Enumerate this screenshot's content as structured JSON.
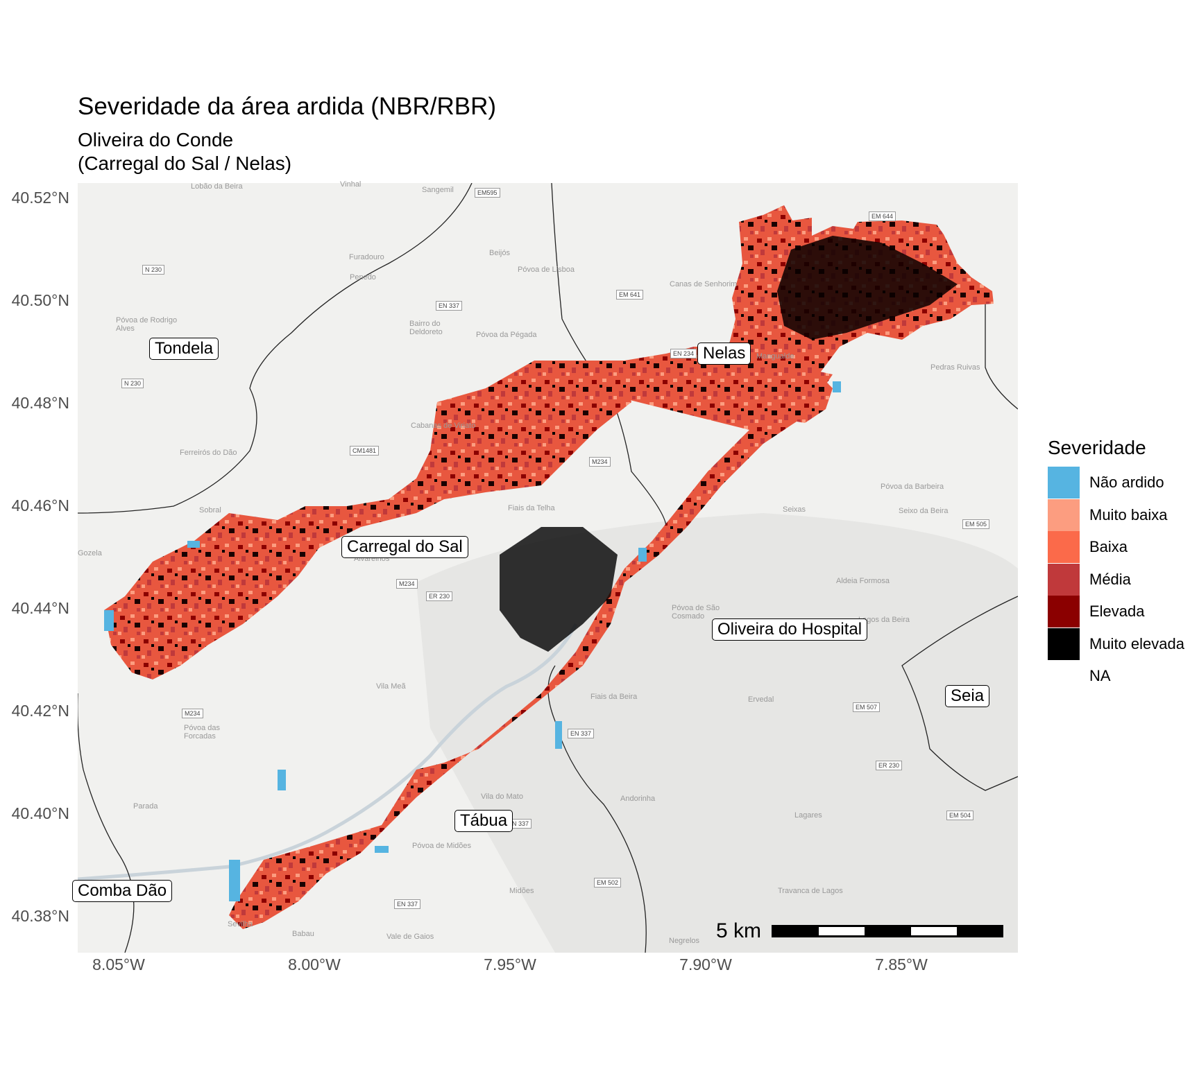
{
  "title": "Severidade da área ardida (NBR/RBR)",
  "subtitle": "Oliveira do Conde\n(Carregal do Sal / Nelas)",
  "axes": {
    "y_ticks": [
      "40.52°N",
      "40.50°N",
      "40.48°N",
      "40.46°N",
      "40.44°N",
      "40.42°N",
      "40.40°N",
      "40.38°N"
    ],
    "x_ticks": [
      "8.05°W",
      "8.00°W",
      "7.95°W",
      "7.90°W",
      "7.85°W"
    ]
  },
  "places": [
    "Tondela",
    "Nelas",
    "Carregal do Sal",
    "Oliveira do Hospital",
    "Seia",
    "Tábua",
    "Comba Dão"
  ],
  "minor_places": [
    "Lobão da Beira",
    "Vinhal",
    "Sangemil",
    "Furadouro",
    "Beijós",
    "Penedo",
    "Póvoa de Lisboa",
    "Canas de Senhorim",
    "Póvoa de Rodrigo Alves",
    "Bairro do Deldoreto",
    "Póvoa da Pégada",
    "Cabanas de Viriato",
    "Ferreirós do Dão",
    "Sobral",
    "Fiais da Telha",
    "Póvoa da Barbeira",
    "Seixas",
    "Seixo da Beira",
    "Aldeia Formosa",
    "Póvoa de São Cosmado",
    "Lagos da Beira",
    "Pedras Ruivas",
    "Alvarelhos",
    "Vila Meã",
    "Fiais da Beira",
    "Ervedal",
    "Póvoa das Forcadas",
    "Parada",
    "Vila do Mato",
    "Andorinha",
    "Lagares",
    "Póvoa de Midões",
    "Midões",
    "Travanca de Lagos",
    "Sevilha",
    "Babau",
    "Vale de Gaios",
    "Negrelos",
    "Mangualde",
    "Gozela"
  ],
  "roads": [
    "EM595",
    "N 230",
    "EN 337",
    "EM 641",
    "EN 234",
    "EM 644",
    "N 230",
    "CM1481",
    "M234",
    "EM 505",
    "M234",
    "ER 230",
    "M234",
    "EN 337",
    "EM 507",
    "ER 230",
    "EM 504",
    "EN 337",
    "EM 502",
    "EN 337"
  ],
  "legend": {
    "title": "Severidade",
    "items": [
      {
        "label": "Não ardido",
        "color": "#56b4e1"
      },
      {
        "label": "Muito baixa",
        "color": "#fc9d80"
      },
      {
        "label": "Baixa",
        "color": "#fb6a4a"
      },
      {
        "label": "Média",
        "color": "#c0393b"
      },
      {
        "label": "Elevada",
        "color": "#8b0000"
      },
      {
        "label": "Muito elevada",
        "color": "#000000"
      },
      {
        "label": "NA",
        "color": "none"
      }
    ]
  },
  "scale_bar": {
    "label": "5 km"
  },
  "colors": {
    "basemap": "#f1f1ef",
    "burned_base": "#e8573f"
  }
}
